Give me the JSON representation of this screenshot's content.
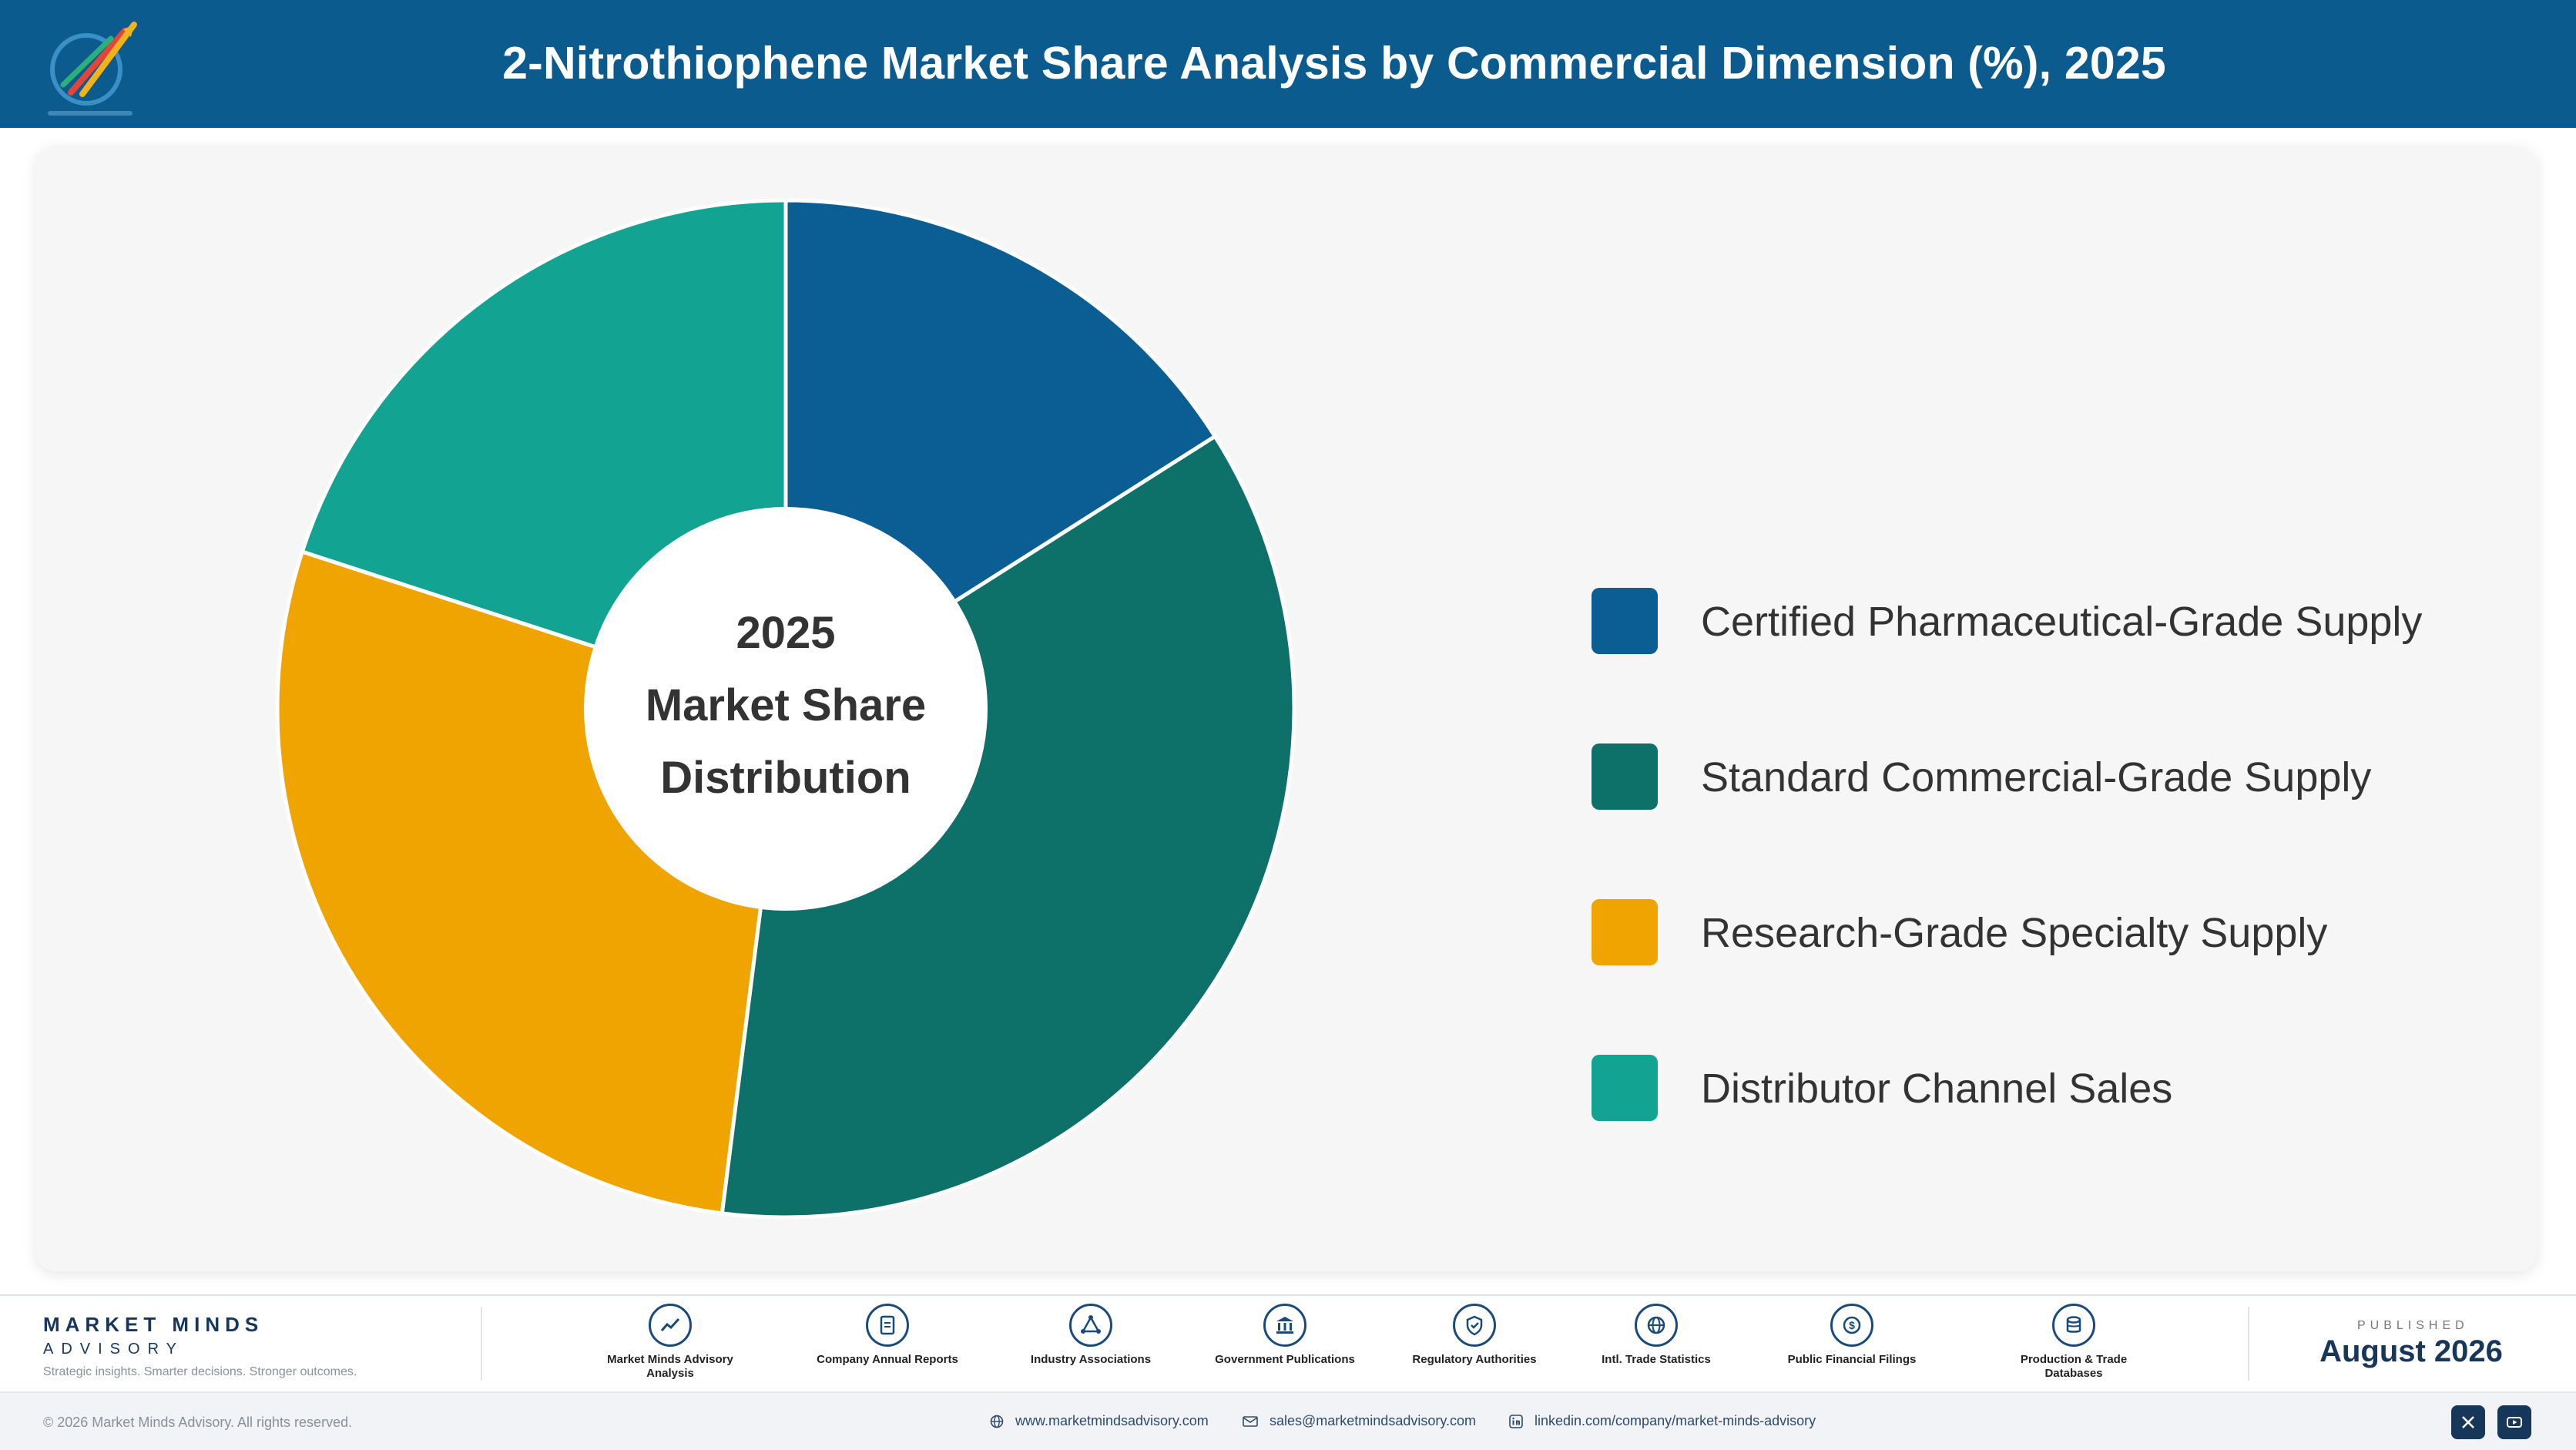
{
  "header": {
    "title": "2-Nitrothiophene Market Share Analysis by Commercial Dimension (%), 2025"
  },
  "chart_data": {
    "type": "pie",
    "title": "2-Nitrothiophene Market Share Analysis by Commercial Dimension (%), 2025",
    "center_label": [
      "2025",
      "Market Share",
      "Distribution"
    ],
    "categories": [
      "Certified Pharmaceutical-Grade Supply",
      "Standard Commercial-Grade Supply",
      "Research-Grade Specialty Supply",
      "Distributor Channel Sales"
    ],
    "values": [
      16,
      36,
      28,
      20
    ],
    "colors": [
      "#0b5e93",
      "#0d7169",
      "#f0a402",
      "#13a393"
    ],
    "legend_position": "right"
  },
  "footer": {
    "brand_name": "MARKET MINDS",
    "brand_sub": "ADVISORY",
    "brand_tagline": "Strategic insights. Smarter decisions. Stronger outcomes.",
    "sources": [
      {
        "icon": "trend-chart-icon",
        "label": "Market Minds Advisory Analysis"
      },
      {
        "icon": "document-icon",
        "label": "Company Annual Reports"
      },
      {
        "icon": "network-icon",
        "label": "Industry Associations"
      },
      {
        "icon": "government-building-icon",
        "label": "Government Publications"
      },
      {
        "icon": "shield-icon",
        "label": "Regulatory Authorities"
      },
      {
        "icon": "globe-icon",
        "label": "Intl. Trade Statistics"
      },
      {
        "icon": "dollar-coin-icon",
        "label": "Public Financial Filings"
      },
      {
        "icon": "database-icon",
        "label": "Production & Trade Databases"
      }
    ],
    "published_label": "PUBLISHED",
    "published_date": "August 2026",
    "copyright": "© 2026 Market Minds Advisory. All rights reserved.",
    "website": "www.marketmindsadvisory.com",
    "email": "sales@marketmindsadvisory.com",
    "linkedin": "linkedin.com/company/market-minds-advisory"
  }
}
